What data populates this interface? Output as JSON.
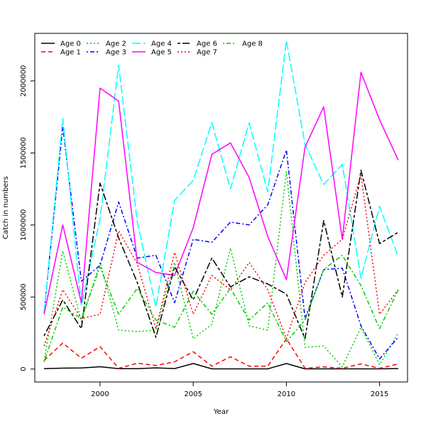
{
  "chart_data": {
    "type": "line",
    "title": "",
    "xlabel": "Year",
    "ylabel": "Catch in numbers",
    "xlim": [
      1996.5,
      2016.5
    ],
    "ylim": [
      -90000,
      2330000
    ],
    "x_ticks": [
      2000,
      2005,
      2010,
      2015
    ],
    "y_ticks": [
      0,
      500000,
      1000000,
      1500000,
      2000000
    ],
    "grid": false,
    "legend_position": "top-left",
    "x": [
      1997,
      1998,
      1999,
      2000,
      2001,
      2002,
      2003,
      2004,
      2005,
      2006,
      2007,
      2008,
      2009,
      2010,
      2011,
      2012,
      2013,
      2014,
      2015,
      2016
    ],
    "series": [
      {
        "name": "Age 0",
        "color": "#000000",
        "dash": "solid",
        "values": [
          2000,
          6000,
          7000,
          16000,
          2000,
          2000,
          8000,
          3000,
          38000,
          1000,
          1000,
          1000,
          1000,
          38000,
          1000,
          1000,
          1000,
          1000,
          1000,
          3000
        ]
      },
      {
        "name": "Age 1",
        "color": "#ff0000",
        "dash": "dashed",
        "values": [
          60000,
          180000,
          75000,
          155000,
          5000,
          40000,
          25000,
          50000,
          120000,
          20000,
          85000,
          20000,
          20000,
          210000,
          5000,
          15000,
          5000,
          35000,
          5000,
          35000
        ]
      },
      {
        "name": "Age 2",
        "color": "#00cd00",
        "dash": "dotted",
        "values": [
          55000,
          820000,
          330000,
          740000,
          270000,
          260000,
          270000,
          740000,
          210000,
          310000,
          840000,
          300000,
          270000,
          1370000,
          150000,
          160000,
          15000,
          290000,
          30000,
          250000
        ]
      },
      {
        "name": "Age 3",
        "color": "#0000ff",
        "dash": "dotdash",
        "values": [
          390000,
          1680000,
          610000,
          720000,
          1160000,
          770000,
          790000,
          460000,
          900000,
          880000,
          1020000,
          1000000,
          1140000,
          1520000,
          350000,
          690000,
          700000,
          300000,
          70000,
          220000
        ]
      },
      {
        "name": "Age 4",
        "color": "#00ffff",
        "dash": "longdash",
        "values": [
          390000,
          1740000,
          440000,
          1040000,
          2110000,
          1020000,
          430000,
          1170000,
          1310000,
          1710000,
          1250000,
          1710000,
          1230000,
          2280000,
          1560000,
          1280000,
          1420000,
          630000,
          1130000,
          780000
        ]
      },
      {
        "name": "Age 5",
        "color": "#ff00ff",
        "dash": "solid",
        "values": [
          380000,
          1000000,
          460000,
          1950000,
          1860000,
          740000,
          670000,
          650000,
          980000,
          1490000,
          1570000,
          1330000,
          920000,
          620000,
          1540000,
          1820000,
          900000,
          2060000,
          1730000,
          1450000
        ]
      },
      {
        "name": "Age 6",
        "color": "#000000",
        "dash": "twodash",
        "values": [
          230000,
          480000,
          280000,
          1290000,
          910000,
          600000,
          220000,
          710000,
          480000,
          770000,
          570000,
          640000,
          590000,
          520000,
          210000,
          1030000,
          500000,
          1380000,
          870000,
          950000
        ]
      },
      {
        "name": "Age 7",
        "color": "#ff0000",
        "dash": "dotted",
        "values": [
          160000,
          550000,
          350000,
          380000,
          960000,
          730000,
          280000,
          810000,
          380000,
          650000,
          550000,
          740000,
          550000,
          210000,
          600000,
          790000,
          900000,
          1350000,
          380000,
          550000
        ]
      },
      {
        "name": "Age 8",
        "color": "#00cd00",
        "dash": "dotdash",
        "values": [
          50000,
          430000,
          350000,
          710000,
          380000,
          560000,
          340000,
          290000,
          540000,
          380000,
          560000,
          340000,
          460000,
          190000,
          340000,
          690000,
          790000,
          580000,
          280000,
          550000
        ]
      }
    ]
  }
}
